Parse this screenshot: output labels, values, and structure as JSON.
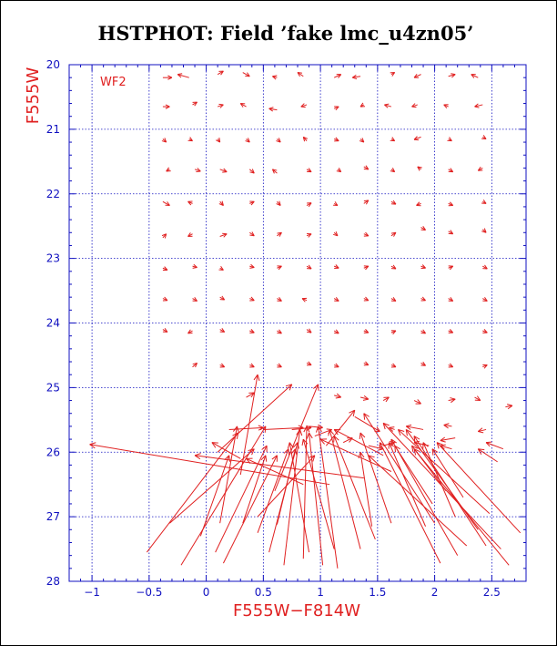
{
  "chart_data": {
    "type": "quiver",
    "title": "HSTPHOT: Field ’fake lmc_u4zn05’",
    "xlabel": "F555W−F814W",
    "ylabel": "F555W",
    "annotation": "WF2",
    "xlim": [
      -1.2,
      2.8
    ],
    "ylim": [
      28,
      20
    ],
    "x_ticks": [
      -1,
      -0.5,
      0,
      0.5,
      1,
      1.5,
      2,
      2.5
    ],
    "x_tick_labels": [
      "−1",
      "−0.5",
      "0",
      "0.5",
      "1",
      "1.5",
      "2",
      "2.5"
    ],
    "y_ticks": [
      20,
      21,
      22,
      23,
      24,
      25,
      26,
      27,
      28
    ],
    "y_tick_labels": [
      "20",
      "21",
      "22",
      "23",
      "24",
      "25",
      "26",
      "27",
      "28"
    ],
    "grid": true,
    "colors": {
      "axes": "#1010c0",
      "grid": "#1010c0",
      "data": "#e02020",
      "labels": "#e02020"
    },
    "small_vectors": [
      [
        -0.38,
        20.2,
        -0.3,
        20.2
      ],
      [
        -0.15,
        20.2,
        -0.25,
        20.15
      ],
      [
        0.1,
        20.15,
        0.15,
        20.1
      ],
      [
        0.32,
        20.12,
        0.38,
        20.18
      ],
      [
        0.62,
        20.2,
        0.58,
        20.18
      ],
      [
        0.85,
        20.18,
        0.8,
        20.12
      ],
      [
        1.12,
        20.2,
        1.18,
        20.15
      ],
      [
        1.35,
        20.18,
        1.28,
        20.2
      ],
      [
        1.62,
        20.15,
        1.65,
        20.12
      ],
      [
        1.88,
        20.15,
        1.82,
        20.2
      ],
      [
        2.12,
        20.18,
        2.18,
        20.15
      ],
      [
        2.38,
        20.2,
        2.32,
        20.15
      ],
      [
        -0.38,
        20.65,
        -0.32,
        20.65
      ],
      [
        -0.12,
        20.62,
        -0.08,
        20.58
      ],
      [
        0.1,
        20.65,
        0.15,
        20.62
      ],
      [
        0.35,
        20.65,
        0.3,
        20.6
      ],
      [
        0.62,
        20.7,
        0.55,
        20.68
      ],
      [
        0.88,
        20.62,
        0.83,
        20.65
      ],
      [
        1.12,
        20.68,
        1.16,
        20.65
      ],
      [
        1.38,
        20.62,
        1.35,
        20.65
      ],
      [
        1.62,
        20.65,
        1.56,
        20.62
      ],
      [
        1.85,
        20.62,
        1.8,
        20.65
      ],
      [
        2.12,
        20.65,
        2.08,
        20.62
      ],
      [
        2.42,
        20.62,
        2.35,
        20.65
      ],
      [
        -0.38,
        21.15,
        -0.35,
        21.2
      ],
      [
        -0.15,
        21.15,
        -0.12,
        21.18
      ],
      [
        0.1,
        21.15,
        0.12,
        21.2
      ],
      [
        0.35,
        21.15,
        0.38,
        21.2
      ],
      [
        0.62,
        21.15,
        0.65,
        21.2
      ],
      [
        0.88,
        21.18,
        0.85,
        21.12
      ],
      [
        1.12,
        21.15,
        1.16,
        21.18
      ],
      [
        1.35,
        21.15,
        1.38,
        21.2
      ],
      [
        1.62,
        21.15,
        1.65,
        21.18
      ],
      [
        1.88,
        21.12,
        1.82,
        21.16
      ],
      [
        2.12,
        21.15,
        2.15,
        21.18
      ],
      [
        2.42,
        21.12,
        2.45,
        21.15
      ],
      [
        -0.32,
        21.62,
        -0.35,
        21.65
      ],
      [
        -0.1,
        21.62,
        -0.05,
        21.65
      ],
      [
        0.12,
        21.62,
        0.18,
        21.66
      ],
      [
        0.38,
        21.62,
        0.42,
        21.68
      ],
      [
        0.62,
        21.68,
        0.58,
        21.62
      ],
      [
        0.88,
        21.62,
        0.92,
        21.66
      ],
      [
        1.15,
        21.62,
        1.18,
        21.66
      ],
      [
        1.38,
        21.58,
        1.42,
        21.62
      ],
      [
        1.62,
        21.62,
        1.65,
        21.66
      ],
      [
        1.88,
        21.62,
        1.85,
        21.58
      ],
      [
        2.12,
        21.62,
        2.16,
        21.66
      ],
      [
        2.42,
        21.6,
        2.38,
        21.64
      ],
      [
        -0.38,
        22.12,
        -0.32,
        22.18
      ],
      [
        -0.12,
        22.15,
        -0.16,
        22.12
      ],
      [
        0.12,
        22.12,
        0.15,
        22.18
      ],
      [
        0.38,
        22.15,
        0.42,
        22.12
      ],
      [
        0.62,
        22.12,
        0.65,
        22.18
      ],
      [
        0.88,
        22.18,
        0.92,
        22.14
      ],
      [
        1.12,
        22.15,
        1.15,
        22.18
      ],
      [
        1.38,
        22.15,
        1.42,
        22.1
      ],
      [
        1.62,
        22.12,
        1.66,
        22.16
      ],
      [
        1.88,
        22.15,
        1.84,
        22.18
      ],
      [
        2.12,
        22.15,
        2.16,
        22.18
      ],
      [
        2.42,
        22.12,
        2.45,
        22.15
      ],
      [
        -0.38,
        22.68,
        -0.35,
        22.62
      ],
      [
        -0.12,
        22.62,
        -0.16,
        22.66
      ],
      [
        0.12,
        22.66,
        0.18,
        22.62
      ],
      [
        0.38,
        22.6,
        0.42,
        22.65
      ],
      [
        0.62,
        22.65,
        0.66,
        22.6
      ],
      [
        0.88,
        22.65,
        0.92,
        22.62
      ],
      [
        1.12,
        22.6,
        1.15,
        22.65
      ],
      [
        1.38,
        22.62,
        1.42,
        22.65
      ],
      [
        1.62,
        22.65,
        1.66,
        22.6
      ],
      [
        1.88,
        22.52,
        1.92,
        22.56
      ],
      [
        2.12,
        22.58,
        2.16,
        22.62
      ],
      [
        2.42,
        22.55,
        2.45,
        22.6
      ],
      [
        -0.38,
        23.15,
        -0.34,
        23.18
      ],
      [
        -0.12,
        23.12,
        -0.08,
        23.14
      ],
      [
        0.12,
        23.15,
        0.15,
        23.18
      ],
      [
        0.38,
        23.12,
        0.42,
        23.14
      ],
      [
        0.62,
        23.15,
        0.66,
        23.12
      ],
      [
        0.88,
        23.12,
        0.92,
        23.16
      ],
      [
        1.12,
        23.12,
        1.16,
        23.15
      ],
      [
        1.38,
        23.15,
        1.42,
        23.12
      ],
      [
        1.62,
        23.12,
        1.66,
        23.16
      ],
      [
        1.88,
        23.12,
        1.92,
        23.15
      ],
      [
        2.12,
        23.15,
        2.16,
        23.12
      ],
      [
        2.42,
        23.12,
        2.46,
        23.16
      ],
      [
        -0.38,
        23.62,
        -0.34,
        23.65
      ],
      [
        -0.12,
        23.62,
        -0.08,
        23.66
      ],
      [
        0.12,
        23.6,
        0.16,
        23.64
      ],
      [
        0.38,
        23.62,
        0.42,
        23.65
      ],
      [
        0.62,
        23.62,
        0.66,
        23.66
      ],
      [
        0.88,
        23.65,
        0.84,
        23.62
      ],
      [
        1.12,
        23.62,
        1.16,
        23.66
      ],
      [
        1.38,
        23.62,
        1.42,
        23.65
      ],
      [
        1.62,
        23.62,
        1.66,
        23.66
      ],
      [
        1.88,
        23.62,
        1.92,
        23.65
      ],
      [
        2.12,
        23.62,
        2.16,
        23.66
      ],
      [
        2.42,
        23.62,
        2.46,
        23.66
      ],
      [
        -0.38,
        24.1,
        -0.34,
        24.14
      ],
      [
        -0.12,
        24.12,
        -0.16,
        24.16
      ],
      [
        0.12,
        24.1,
        0.16,
        24.14
      ],
      [
        0.38,
        24.12,
        0.42,
        24.15
      ],
      [
        0.62,
        24.12,
        0.66,
        24.16
      ],
      [
        0.88,
        24.1,
        0.92,
        24.15
      ],
      [
        1.12,
        24.12,
        1.16,
        24.16
      ],
      [
        1.38,
        24.12,
        1.42,
        24.15
      ],
      [
        1.62,
        24.15,
        1.66,
        24.12
      ],
      [
        1.88,
        24.12,
        1.92,
        24.16
      ],
      [
        2.12,
        24.12,
        2.16,
        24.15
      ],
      [
        2.42,
        24.12,
        2.46,
        24.15
      ],
      [
        -0.12,
        24.68,
        -0.08,
        24.62
      ],
      [
        0.12,
        24.65,
        0.16,
        24.68
      ],
      [
        0.38,
        24.65,
        0.42,
        24.68
      ],
      [
        0.62,
        24.65,
        0.66,
        24.68
      ],
      [
        0.88,
        24.62,
        0.92,
        24.65
      ],
      [
        1.12,
        24.65,
        1.16,
        24.68
      ],
      [
        1.38,
        24.62,
        1.42,
        24.65
      ],
      [
        1.62,
        24.65,
        1.66,
        24.68
      ],
      [
        1.88,
        24.62,
        1.92,
        24.66
      ],
      [
        2.12,
        24.65,
        2.16,
        24.68
      ],
      [
        2.42,
        24.68,
        2.46,
        24.65
      ]
    ],
    "long_vectors": [
      [
        -0.32,
        27.1,
        0.42,
        25.95
      ],
      [
        -0.05,
        27.3,
        0.2,
        26.05
      ],
      [
        -0.22,
        27.75,
        0.52,
        25.6
      ],
      [
        -0.52,
        27.55,
        0.28,
        25.7
      ],
      [
        0.08,
        27.55,
        0.53,
        25.9
      ],
      [
        0.12,
        27.1,
        0.27,
        25.6
      ],
      [
        0.32,
        27.1,
        0.52,
        26.05
      ],
      [
        0.45,
        27.25,
        0.72,
        25.95
      ],
      [
        0.15,
        27.72,
        0.62,
        26.05
      ],
      [
        0.55,
        27.55,
        0.8,
        25.85
      ],
      [
        0.62,
        27.12,
        0.78,
        25.95
      ],
      [
        0.9,
        27.55,
        0.73,
        25.85
      ],
      [
        1.12,
        27.5,
        0.85,
        25.8
      ],
      [
        0.85,
        27.65,
        0.88,
        25.6
      ],
      [
        1.02,
        27.75,
        0.9,
        25.7
      ],
      [
        0.68,
        27.75,
        0.82,
        25.65
      ],
      [
        1.35,
        27.5,
        1.08,
        25.65
      ],
      [
        1.15,
        27.8,
        0.98,
        25.6
      ],
      [
        1.48,
        27.35,
        1.12,
        25.75
      ],
      [
        1.62,
        27.1,
        1.35,
        25.7
      ],
      [
        0.45,
        27.0,
        0.95,
        26.05
      ],
      [
        0.3,
        26.35,
        0.45,
        24.8
      ],
      [
        0.1,
        26.0,
        0.75,
        24.95
      ],
      [
        0.6,
        26.6,
        0.98,
        24.95
      ],
      [
        1.05,
        25.9,
        1.3,
        25.35
      ],
      [
        1.55,
        26.05,
        1.12,
        25.65
      ],
      [
        1.62,
        26.3,
        1.0,
        25.8
      ],
      [
        2.28,
        27.45,
        1.42,
        26.05
      ],
      [
        2.2,
        27.6,
        1.62,
        25.8
      ],
      [
        2.05,
        27.72,
        1.52,
        25.85
      ],
      [
        2.65,
        27.75,
        1.82,
        25.95
      ],
      [
        2.58,
        27.5,
        1.55,
        25.55
      ],
      [
        2.45,
        27.45,
        1.82,
        25.75
      ],
      [
        2.75,
        27.25,
        2.02,
        25.85
      ],
      [
        2.38,
        27.2,
        1.75,
        25.65
      ],
      [
        1.98,
        26.8,
        1.65,
        25.9
      ],
      [
        2.18,
        27.0,
        1.9,
        25.85
      ],
      [
        2.25,
        26.7,
        1.98,
        25.95
      ],
      [
        2.48,
        26.95,
        1.68,
        25.65
      ],
      [
        1.92,
        27.15,
        1.6,
        25.85
      ],
      [
        1.45,
        27.15,
        1.35,
        26.0
      ],
      [
        2.0,
        27.1,
        1.38,
        25.4
      ],
      [
        2.55,
        26.15,
        2.38,
        25.95
      ],
      [
        2.1,
        26.6,
        1.8,
        25.9
      ],
      [
        1.08,
        26.5,
        -1.02,
        25.88
      ],
      [
        1.38,
        26.4,
        -0.1,
        26.05
      ],
      [
        0.85,
        26.5,
        0.35,
        26.1
      ],
      [
        0.3,
        26.1,
        0.05,
        25.85
      ]
    ],
    "short_vectors": [
      [
        0.2,
        25.65,
        0.5,
        25.62
      ],
      [
        0.5,
        25.65,
        0.85,
        25.62
      ],
      [
        0.75,
        25.65,
        0.92,
        25.62
      ],
      [
        0.9,
        25.6,
        1.02,
        25.62
      ],
      [
        0.95,
        25.75,
        1.1,
        25.65
      ],
      [
        1.2,
        25.85,
        1.28,
        25.78
      ],
      [
        1.3,
        25.45,
        1.52,
        25.68
      ],
      [
        1.42,
        25.9,
        1.55,
        25.95
      ],
      [
        1.55,
        25.9,
        1.65,
        25.85
      ],
      [
        1.9,
        25.65,
        1.75,
        25.6
      ],
      [
        2.15,
        25.95,
        2.05,
        25.9
      ],
      [
        1.95,
        25.9,
        1.82,
        25.85
      ],
      [
        2.6,
        25.95,
        2.45,
        25.85
      ],
      [
        2.18,
        25.78,
        2.05,
        25.82
      ],
      [
        2.15,
        25.6,
        2.08,
        25.58
      ],
      [
        2.45,
        25.65,
        2.38,
        25.68
      ],
      [
        1.65,
        25.65,
        1.6,
        25.62
      ],
      [
        1.55,
        25.2,
        1.6,
        25.15
      ],
      [
        1.82,
        25.2,
        1.88,
        25.25
      ],
      [
        2.12,
        25.2,
        2.18,
        25.18
      ],
      [
        2.35,
        25.15,
        2.4,
        25.2
      ],
      [
        2.62,
        25.3,
        2.68,
        25.28
      ],
      [
        0.35,
        25.15,
        0.42,
        25.08
      ],
      [
        1.12,
        25.12,
        1.18,
        25.15
      ],
      [
        1.35,
        25.15,
        1.42,
        25.18
      ]
    ]
  }
}
